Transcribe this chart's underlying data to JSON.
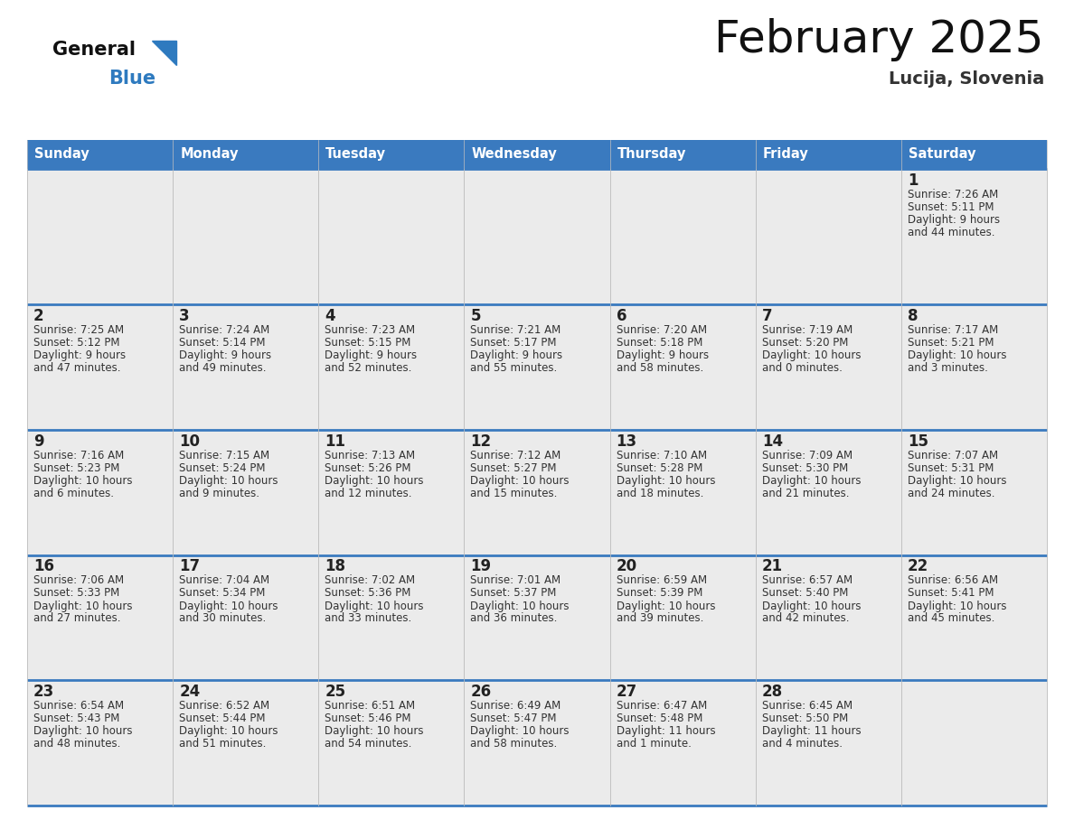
{
  "title": "February 2025",
  "subtitle": "Lucija, Slovenia",
  "header_color": "#3a7abf",
  "header_text_color": "#ffffff",
  "day_names": [
    "Sunday",
    "Monday",
    "Tuesday",
    "Wednesday",
    "Thursday",
    "Friday",
    "Saturday"
  ],
  "cell_bg_color": "#ebebeb",
  "border_color": "#3a7abf",
  "cell_border_color": "#c0c0c0",
  "number_color": "#222222",
  "text_color": "#333333",
  "title_color": "#111111",
  "subtitle_color": "#333333",
  "logo_general_color": "#111111",
  "logo_blue_color": "#2e7abf",
  "logo_triangle_color": "#2e7abf",
  "calendar_data": [
    [
      null,
      null,
      null,
      null,
      null,
      null,
      {
        "day": 1,
        "sunrise": "7:26 AM",
        "sunset": "5:11 PM",
        "daylight": "9 hours\nand 44 minutes."
      }
    ],
    [
      {
        "day": 2,
        "sunrise": "7:25 AM",
        "sunset": "5:12 PM",
        "daylight": "9 hours\nand 47 minutes."
      },
      {
        "day": 3,
        "sunrise": "7:24 AM",
        "sunset": "5:14 PM",
        "daylight": "9 hours\nand 49 minutes."
      },
      {
        "day": 4,
        "sunrise": "7:23 AM",
        "sunset": "5:15 PM",
        "daylight": "9 hours\nand 52 minutes."
      },
      {
        "day": 5,
        "sunrise": "7:21 AM",
        "sunset": "5:17 PM",
        "daylight": "9 hours\nand 55 minutes."
      },
      {
        "day": 6,
        "sunrise": "7:20 AM",
        "sunset": "5:18 PM",
        "daylight": "9 hours\nand 58 minutes."
      },
      {
        "day": 7,
        "sunrise": "7:19 AM",
        "sunset": "5:20 PM",
        "daylight": "10 hours\nand 0 minutes."
      },
      {
        "day": 8,
        "sunrise": "7:17 AM",
        "sunset": "5:21 PM",
        "daylight": "10 hours\nand 3 minutes."
      }
    ],
    [
      {
        "day": 9,
        "sunrise": "7:16 AM",
        "sunset": "5:23 PM",
        "daylight": "10 hours\nand 6 minutes."
      },
      {
        "day": 10,
        "sunrise": "7:15 AM",
        "sunset": "5:24 PM",
        "daylight": "10 hours\nand 9 minutes."
      },
      {
        "day": 11,
        "sunrise": "7:13 AM",
        "sunset": "5:26 PM",
        "daylight": "10 hours\nand 12 minutes."
      },
      {
        "day": 12,
        "sunrise": "7:12 AM",
        "sunset": "5:27 PM",
        "daylight": "10 hours\nand 15 minutes."
      },
      {
        "day": 13,
        "sunrise": "7:10 AM",
        "sunset": "5:28 PM",
        "daylight": "10 hours\nand 18 minutes."
      },
      {
        "day": 14,
        "sunrise": "7:09 AM",
        "sunset": "5:30 PM",
        "daylight": "10 hours\nand 21 minutes."
      },
      {
        "day": 15,
        "sunrise": "7:07 AM",
        "sunset": "5:31 PM",
        "daylight": "10 hours\nand 24 minutes."
      }
    ],
    [
      {
        "day": 16,
        "sunrise": "7:06 AM",
        "sunset": "5:33 PM",
        "daylight": "10 hours\nand 27 minutes."
      },
      {
        "day": 17,
        "sunrise": "7:04 AM",
        "sunset": "5:34 PM",
        "daylight": "10 hours\nand 30 minutes."
      },
      {
        "day": 18,
        "sunrise": "7:02 AM",
        "sunset": "5:36 PM",
        "daylight": "10 hours\nand 33 minutes."
      },
      {
        "day": 19,
        "sunrise": "7:01 AM",
        "sunset": "5:37 PM",
        "daylight": "10 hours\nand 36 minutes."
      },
      {
        "day": 20,
        "sunrise": "6:59 AM",
        "sunset": "5:39 PM",
        "daylight": "10 hours\nand 39 minutes."
      },
      {
        "day": 21,
        "sunrise": "6:57 AM",
        "sunset": "5:40 PM",
        "daylight": "10 hours\nand 42 minutes."
      },
      {
        "day": 22,
        "sunrise": "6:56 AM",
        "sunset": "5:41 PM",
        "daylight": "10 hours\nand 45 minutes."
      }
    ],
    [
      {
        "day": 23,
        "sunrise": "6:54 AM",
        "sunset": "5:43 PM",
        "daylight": "10 hours\nand 48 minutes."
      },
      {
        "day": 24,
        "sunrise": "6:52 AM",
        "sunset": "5:44 PM",
        "daylight": "10 hours\nand 51 minutes."
      },
      {
        "day": 25,
        "sunrise": "6:51 AM",
        "sunset": "5:46 PM",
        "daylight": "10 hours\nand 54 minutes."
      },
      {
        "day": 26,
        "sunrise": "6:49 AM",
        "sunset": "5:47 PM",
        "daylight": "10 hours\nand 58 minutes."
      },
      {
        "day": 27,
        "sunrise": "6:47 AM",
        "sunset": "5:48 PM",
        "daylight": "11 hours\nand 1 minute."
      },
      {
        "day": 28,
        "sunrise": "6:45 AM",
        "sunset": "5:50 PM",
        "daylight": "11 hours\nand 4 minutes."
      },
      null
    ]
  ]
}
